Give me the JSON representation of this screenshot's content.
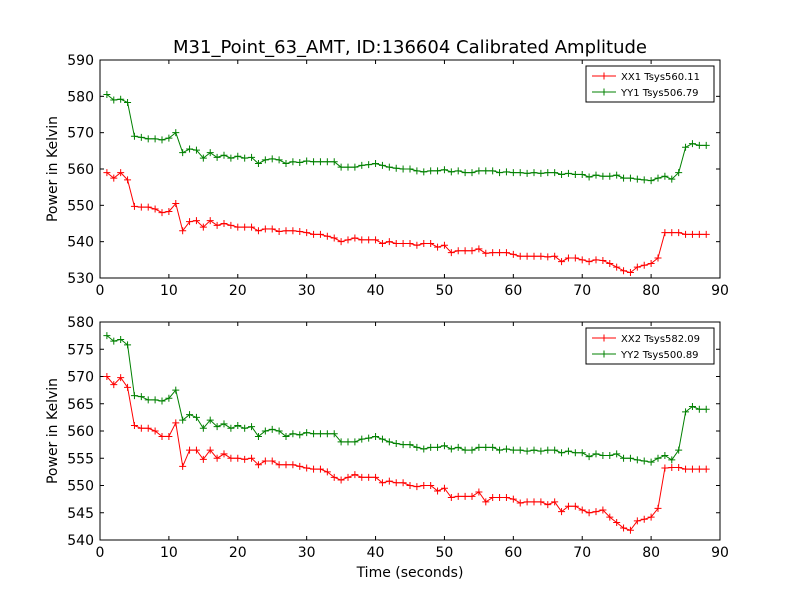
{
  "title": "M31_Point_63_AMT, ID:136604 Calibrated Amplitude",
  "chart_data": [
    {
      "type": "line",
      "ylabel": "Power in Kelvin",
      "xlabel": "",
      "xlim": [
        0,
        90
      ],
      "ylim": [
        530,
        590
      ],
      "xticks": [
        0,
        10,
        20,
        30,
        40,
        50,
        60,
        70,
        80,
        90
      ],
      "yticks": [
        530,
        540,
        550,
        560,
        570,
        580,
        590
      ],
      "legend_position": "top-right",
      "series": [
        {
          "name": "XX1 Tsys560.11",
          "color": "#ff0000",
          "x": [
            1,
            2,
            3,
            4,
            5,
            6,
            7,
            8,
            9,
            10,
            11,
            12,
            13,
            14,
            15,
            16,
            17,
            18,
            19,
            20,
            21,
            22,
            23,
            24,
            25,
            26,
            27,
            28,
            29,
            30,
            31,
            32,
            33,
            34,
            35,
            36,
            37,
            38,
            39,
            40,
            41,
            42,
            43,
            44,
            45,
            46,
            47,
            48,
            49,
            50,
            51,
            52,
            53,
            54,
            55,
            56,
            57,
            58,
            59,
            60,
            61,
            62,
            63,
            64,
            65,
            66,
            67,
            68,
            69,
            70,
            71,
            72,
            73,
            74,
            75,
            76,
            77,
            78,
            79,
            80,
            81,
            82,
            83,
            84,
            85,
            86,
            87,
            88
          ],
          "y": [
            559.0,
            557.5,
            559.0,
            557.0,
            549.7,
            549.5,
            549.5,
            549.0,
            548.0,
            548.3,
            550.5,
            543.0,
            545.5,
            545.8,
            544.0,
            545.8,
            544.5,
            545.0,
            544.5,
            544.0,
            544.0,
            544.0,
            543.0,
            543.5,
            543.5,
            542.8,
            543.0,
            543.0,
            542.8,
            542.5,
            542.0,
            542.0,
            541.5,
            541.0,
            540.0,
            540.5,
            541.0,
            540.5,
            540.5,
            540.5,
            539.5,
            540.0,
            539.5,
            539.5,
            539.5,
            539.0,
            539.5,
            539.5,
            538.5,
            539.0,
            537.0,
            537.5,
            537.5,
            537.5,
            538.0,
            536.8,
            537.0,
            537.0,
            537.0,
            536.5,
            536.0,
            536.0,
            536.0,
            536.0,
            535.8,
            536.0,
            534.5,
            535.5,
            535.5,
            535.0,
            534.5,
            535.0,
            534.8,
            534.0,
            533.0,
            532.0,
            531.5,
            533.0,
            533.5,
            534.0,
            535.5,
            542.5,
            542.5,
            542.5,
            542.0,
            542.0,
            542.0,
            542.0
          ]
        },
        {
          "name": "YY1 Tsys506.79",
          "color": "#008000",
          "x": [
            1,
            2,
            3,
            4,
            5,
            6,
            7,
            8,
            9,
            10,
            11,
            12,
            13,
            14,
            15,
            16,
            17,
            18,
            19,
            20,
            21,
            22,
            23,
            24,
            25,
            26,
            27,
            28,
            29,
            30,
            31,
            32,
            33,
            34,
            35,
            36,
            37,
            38,
            39,
            40,
            41,
            42,
            43,
            44,
            45,
            46,
            47,
            48,
            49,
            50,
            51,
            52,
            53,
            54,
            55,
            56,
            57,
            58,
            59,
            60,
            61,
            62,
            63,
            64,
            65,
            66,
            67,
            68,
            69,
            70,
            71,
            72,
            73,
            74,
            75,
            76,
            77,
            78,
            79,
            80,
            81,
            82,
            83,
            84,
            85,
            86,
            87,
            88
          ],
          "y": [
            580.5,
            579.0,
            579.2,
            578.3,
            569.0,
            568.7,
            568.3,
            568.3,
            568.0,
            568.5,
            570.0,
            564.5,
            565.5,
            565.2,
            563.0,
            564.5,
            563.2,
            563.8,
            563.0,
            563.5,
            563.0,
            563.2,
            561.5,
            562.5,
            562.8,
            562.5,
            561.5,
            562.0,
            561.8,
            562.2,
            562.0,
            562.0,
            562.0,
            562.0,
            560.5,
            560.5,
            560.5,
            561.0,
            561.2,
            561.5,
            561.0,
            560.5,
            560.2,
            560.0,
            560.0,
            559.5,
            559.2,
            559.5,
            559.5,
            559.8,
            559.2,
            559.5,
            559.0,
            559.0,
            559.5,
            559.5,
            559.5,
            559.0,
            559.2,
            559.0,
            559.0,
            558.8,
            559.0,
            558.8,
            559.0,
            559.0,
            558.5,
            558.8,
            558.5,
            558.5,
            557.8,
            558.3,
            558.0,
            558.0,
            558.3,
            557.5,
            557.5,
            557.2,
            557.0,
            556.8,
            557.5,
            558.0,
            557.2,
            559.0,
            566.0,
            567.0,
            566.5,
            566.5
          ]
        }
      ]
    },
    {
      "type": "line",
      "ylabel": "Power in Kelvin",
      "xlabel": "Time (seconds)",
      "xlim": [
        0,
        90
      ],
      "ylim": [
        540,
        580
      ],
      "xticks": [
        0,
        10,
        20,
        30,
        40,
        50,
        60,
        70,
        80,
        90
      ],
      "yticks": [
        540,
        545,
        550,
        555,
        560,
        565,
        570,
        575,
        580
      ],
      "legend_position": "top-right",
      "series": [
        {
          "name": "XX2 Tsys582.09",
          "color": "#ff0000",
          "x": [
            1,
            2,
            3,
            4,
            5,
            6,
            7,
            8,
            9,
            10,
            11,
            12,
            13,
            14,
            15,
            16,
            17,
            18,
            19,
            20,
            21,
            22,
            23,
            24,
            25,
            26,
            27,
            28,
            29,
            30,
            31,
            32,
            33,
            34,
            35,
            36,
            37,
            38,
            39,
            40,
            41,
            42,
            43,
            44,
            45,
            46,
            47,
            48,
            49,
            50,
            51,
            52,
            53,
            54,
            55,
            56,
            57,
            58,
            59,
            60,
            61,
            62,
            63,
            64,
            65,
            66,
            67,
            68,
            69,
            70,
            71,
            72,
            73,
            74,
            75,
            76,
            77,
            78,
            79,
            80,
            81,
            82,
            83,
            84,
            85,
            86,
            87,
            88
          ],
          "y": [
            570.0,
            568.5,
            569.8,
            568.0,
            561.0,
            560.5,
            560.5,
            560.0,
            559.0,
            559.0,
            561.5,
            553.5,
            556.5,
            556.5,
            554.8,
            556.5,
            555.0,
            555.8,
            555.0,
            555.0,
            554.8,
            555.0,
            553.8,
            554.5,
            554.5,
            553.8,
            553.8,
            553.8,
            553.5,
            553.2,
            553.0,
            553.0,
            552.5,
            551.5,
            551.0,
            551.5,
            552.0,
            551.5,
            551.5,
            551.5,
            550.5,
            550.8,
            550.5,
            550.5,
            550.0,
            549.8,
            550.0,
            550.0,
            549.0,
            549.5,
            547.8,
            548.0,
            548.0,
            548.0,
            548.8,
            547.0,
            547.8,
            547.8,
            547.8,
            547.5,
            546.8,
            547.0,
            547.0,
            547.0,
            546.5,
            547.0,
            545.2,
            546.2,
            546.2,
            545.5,
            545.0,
            545.2,
            545.5,
            544.2,
            543.2,
            542.2,
            541.8,
            543.5,
            543.8,
            544.2,
            545.8,
            553.2,
            553.3,
            553.3,
            553.0,
            553.0,
            553.0,
            553.0
          ]
        },
        {
          "name": "YY2 Tsys500.89",
          "color": "#008000",
          "x": [
            1,
            2,
            3,
            4,
            5,
            6,
            7,
            8,
            9,
            10,
            11,
            12,
            13,
            14,
            15,
            16,
            17,
            18,
            19,
            20,
            21,
            22,
            23,
            24,
            25,
            26,
            27,
            28,
            29,
            30,
            31,
            32,
            33,
            34,
            35,
            36,
            37,
            38,
            39,
            40,
            41,
            42,
            43,
            44,
            45,
            46,
            47,
            48,
            49,
            50,
            51,
            52,
            53,
            54,
            55,
            56,
            57,
            58,
            59,
            60,
            61,
            62,
            63,
            64,
            65,
            66,
            67,
            68,
            69,
            70,
            71,
            72,
            73,
            74,
            75,
            76,
            77,
            78,
            79,
            80,
            81,
            82,
            83,
            84,
            85,
            86,
            87,
            88
          ],
          "y": [
            577.5,
            576.5,
            576.8,
            575.8,
            566.5,
            566.3,
            565.7,
            565.7,
            565.5,
            566.0,
            567.5,
            562.0,
            563.0,
            562.5,
            560.5,
            562.0,
            560.8,
            561.3,
            560.5,
            561.0,
            560.5,
            560.8,
            559.0,
            560.0,
            560.3,
            560.0,
            559.0,
            559.5,
            559.3,
            559.7,
            559.5,
            559.5,
            559.5,
            559.5,
            558.0,
            558.0,
            558.0,
            558.5,
            558.7,
            559.0,
            558.5,
            558.0,
            557.7,
            557.5,
            557.5,
            557.0,
            556.7,
            557.0,
            557.0,
            557.3,
            556.7,
            557.0,
            556.5,
            556.5,
            557.0,
            557.0,
            557.0,
            556.5,
            556.7,
            556.5,
            556.5,
            556.3,
            556.5,
            556.3,
            556.5,
            556.5,
            556.0,
            556.3,
            556.0,
            556.0,
            555.3,
            555.8,
            555.5,
            555.5,
            555.8,
            555.0,
            555.0,
            554.7,
            554.5,
            554.3,
            555.0,
            555.5,
            554.7,
            556.5,
            563.5,
            564.5,
            564.0,
            564.0
          ]
        }
      ]
    }
  ]
}
